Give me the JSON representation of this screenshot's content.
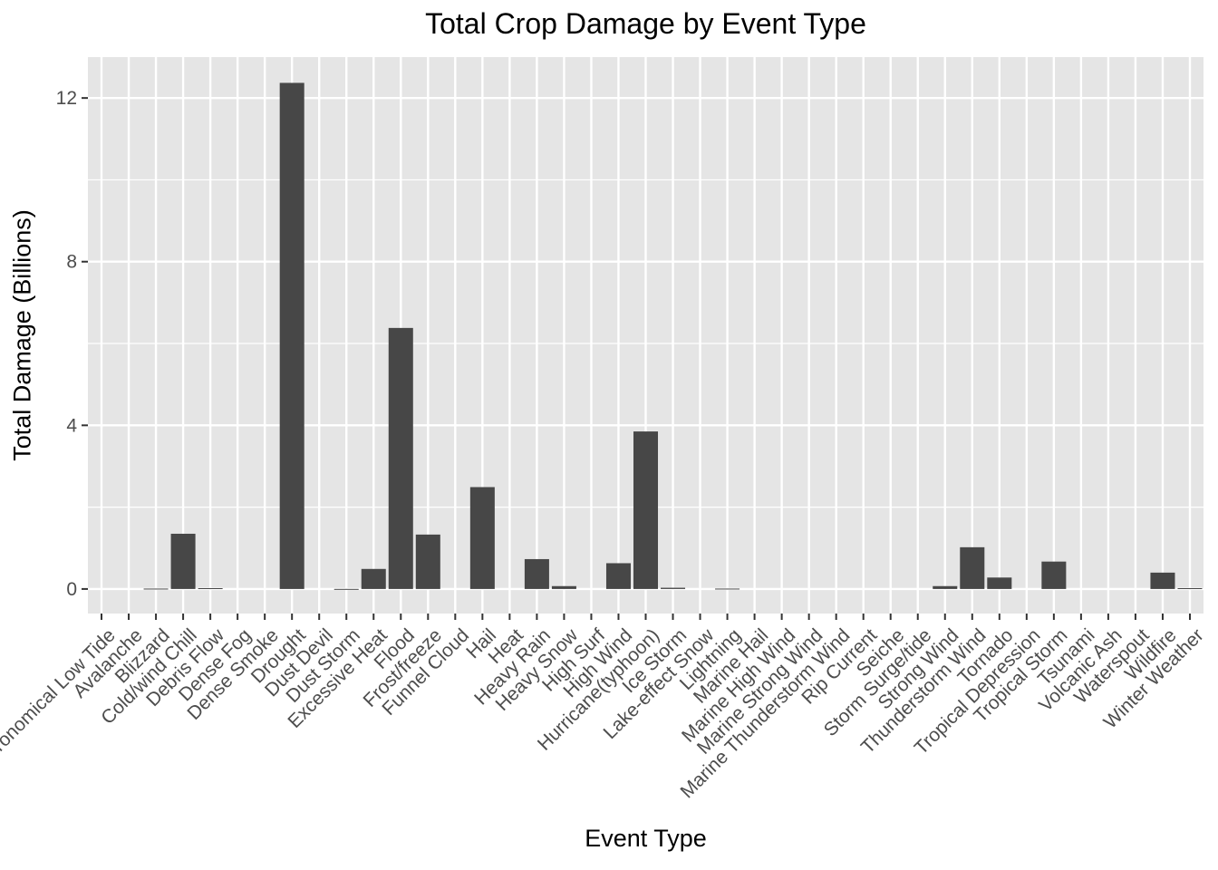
{
  "chart_data": {
    "type": "bar",
    "title": "Total Crop Damage by Event Type",
    "xlabel": "Event Type",
    "ylabel": "Total Damage (Billions)",
    "ylim": [
      -0.6,
      13.0
    ],
    "yticks": [
      0,
      4,
      8,
      12
    ],
    "grid": true,
    "categories": [
      "Astronomical Low Tide",
      "Avalanche",
      "Blizzard",
      "Cold/wind Chill",
      "Debris Flow",
      "Dense Fog",
      "Dense Smoke",
      "Drought",
      "Dust Devil",
      "Dust Storm",
      "Excessive Heat",
      "Flood",
      "Frost/freeze",
      "Funnel Cloud",
      "Hail",
      "Heat",
      "Heavy Rain",
      "Heavy Snow",
      "High Surf",
      "High Wind",
      "Hurricane(typhoon)",
      "Ice Storm",
      "Lake-effect Snow",
      "Lightning",
      "Marine Hail",
      "Marine High Wind",
      "Marine Strong Wind",
      "Marine Thunderstorm Wind",
      "Rip Current",
      "Seiche",
      "Storm Surge/tide",
      "Strong Wind",
      "Thunderstorm Wind",
      "Tornado",
      "Tropical Depression",
      "Tropical Storm",
      "Tsunami",
      "Volcanic Ash",
      "Waterspout",
      "Wildfire",
      "Winter Weather"
    ],
    "values": [
      0,
      0,
      0.01,
      1.35,
      0.02,
      0,
      0,
      12.37,
      0,
      0.002,
      0.49,
      6.38,
      1.33,
      0,
      2.49,
      0,
      0.73,
      0.07,
      0,
      0.63,
      3.85,
      0.03,
      0,
      0.01,
      0,
      0,
      0,
      0,
      0,
      0,
      0,
      0.07,
      1.02,
      0.28,
      0,
      0.67,
      0,
      0,
      0,
      0.4,
      0.02
    ],
    "colors": {
      "panel": "#E5E5E5",
      "grid_major": "#FFFFFF",
      "bar": "#474747",
      "tick_label": "#4D4D4D",
      "tick": "#333333"
    }
  }
}
